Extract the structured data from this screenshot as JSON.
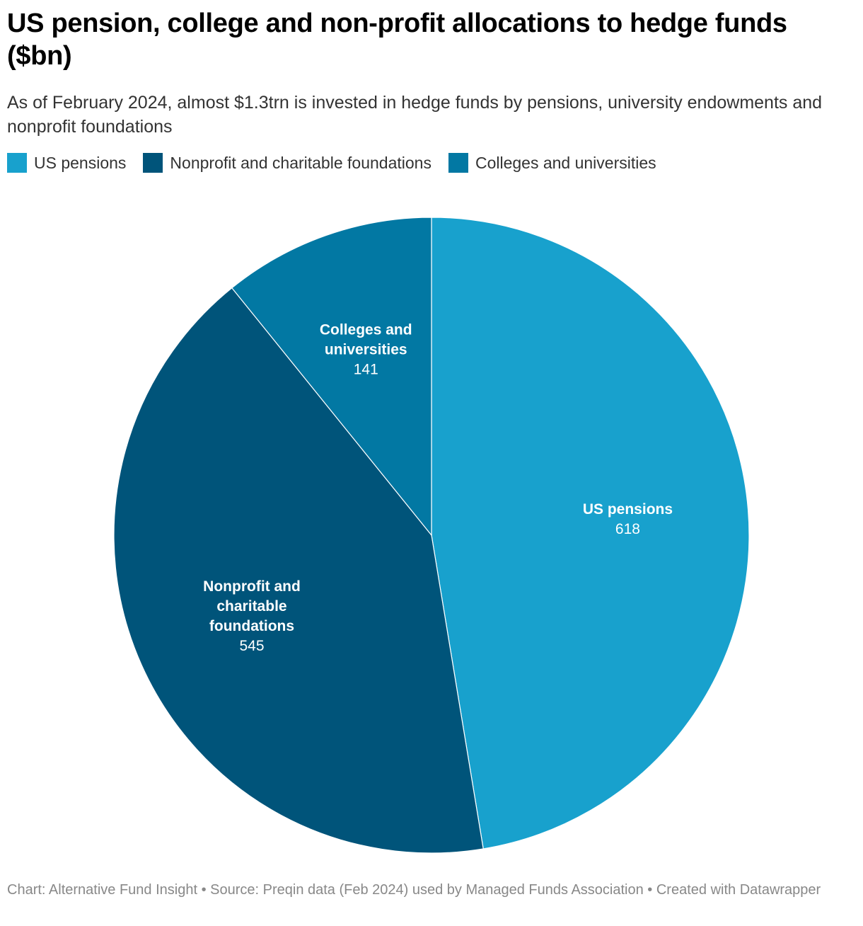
{
  "title": "US pension, college and non-profit allocations to hedge funds ($bn)",
  "subtitle": "As of February 2024, almost $1.3trn is invested in hedge funds by pensions, university endowments and nonprofit foundations",
  "footer": "Chart: Alternative Fund Insight • Source: Preqin data (Feb 2024) used by Managed Funds Association • Created with Datawrapper",
  "chart_data": {
    "type": "pie",
    "title": "US pension, college and non-profit allocations to hedge funds ($bn)",
    "start_angle": "top (12 o'clock), clockwise",
    "slices": [
      {
        "name": "US pensions",
        "label_lines": [
          "US pensions"
        ],
        "value": 618,
        "display_value": "618",
        "color": "#18a1cd"
      },
      {
        "name": "Nonprofit and charitable foundations",
        "label_lines": [
          "Nonprofit and",
          "charitable",
          "foundations"
        ],
        "value": 545,
        "display_value": "545",
        "color": "#00547a"
      },
      {
        "name": "Colleges and universities",
        "label_lines": [
          "Colleges and",
          "universities"
        ],
        "value": 141,
        "display_value": "141",
        "color": "#0278a3"
      }
    ],
    "legend": [
      {
        "label": "US pensions",
        "color": "#18a1cd"
      },
      {
        "label": "Nonprofit and charitable foundations",
        "color": "#00547a"
      },
      {
        "label": "Colleges and universities",
        "color": "#0278a3"
      }
    ],
    "legend_position": "top-left"
  }
}
